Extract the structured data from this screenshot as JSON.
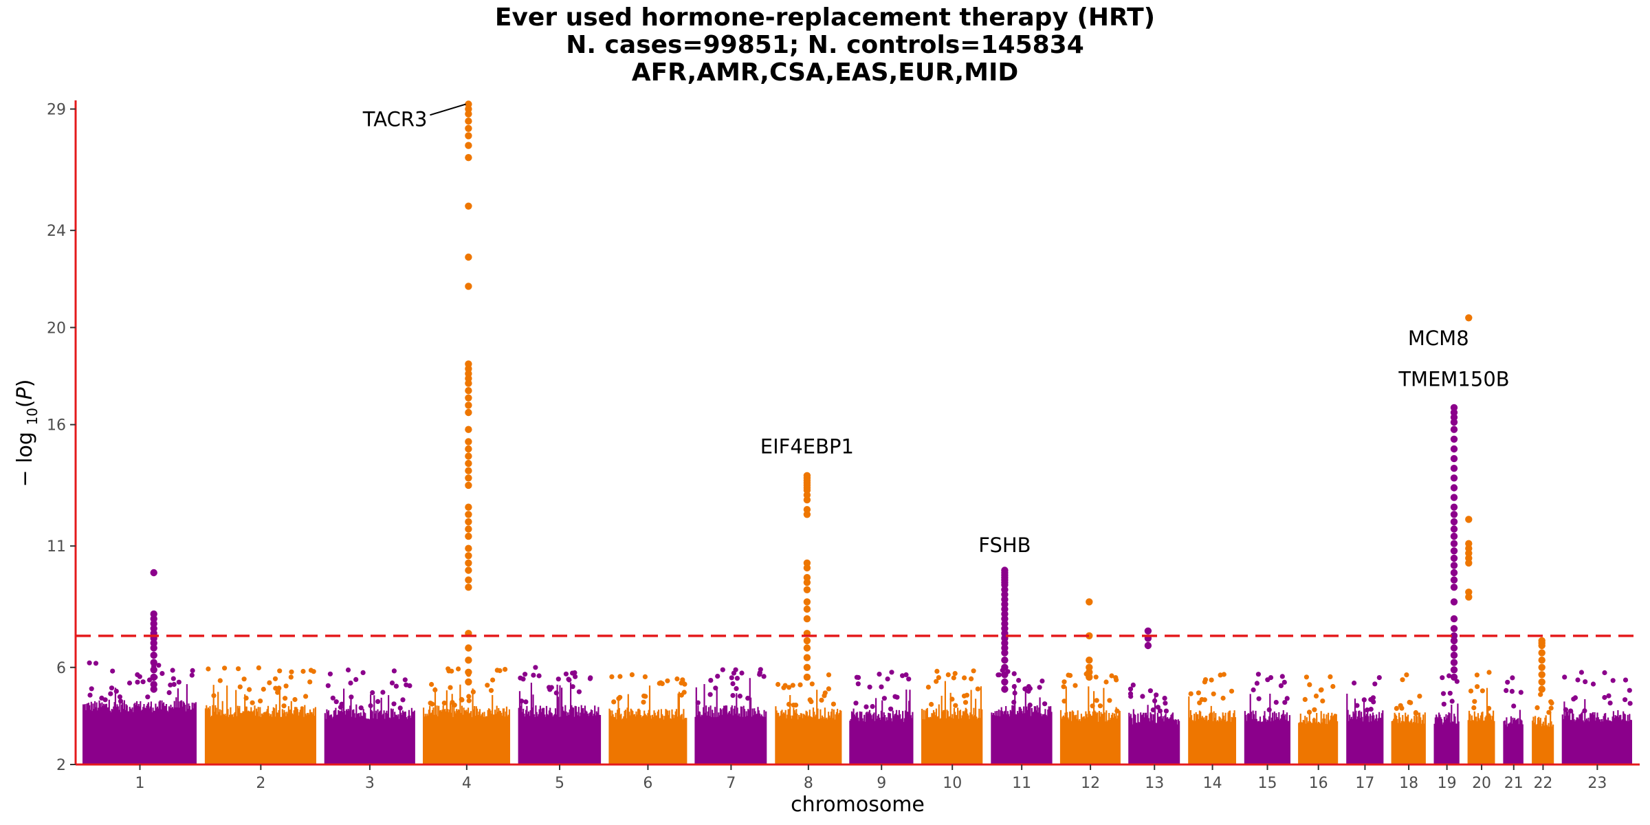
{
  "title": {
    "line1": "Ever used hormone-replacement therapy (HRT)",
    "line2": "N. cases=99851; N. controls=145834",
    "line3": "AFR,AMR,CSA,EAS,EUR,MID"
  },
  "colors": {
    "odd": "#8b008b",
    "even": "#ee7600",
    "axis": "#e41a1c",
    "threshold": "#e41a1c"
  },
  "chart_data": {
    "type": "scatter",
    "subtype": "manhattan",
    "xlabel": "chromosome",
    "ylabel_parts": [
      "− log",
      "10",
      "(",
      "P",
      ")"
    ],
    "ylim": [
      2,
      29.3
    ],
    "ytick_values": [
      2,
      6,
      11,
      16,
      20,
      24,
      29
    ],
    "ytick_labels": [
      "2",
      "6",
      "11",
      "16",
      "20",
      "24",
      "29"
    ],
    "significance_threshold": 7.3,
    "chromosomes": [
      {
        "label": "1",
        "size": 249,
        "baseline": 4.4
      },
      {
        "label": "2",
        "size": 243,
        "baseline": 4.2
      },
      {
        "label": "3",
        "size": 198,
        "baseline": 4.1
      },
      {
        "label": "4",
        "size": 191,
        "baseline": 4.2
      },
      {
        "label": "5",
        "size": 181,
        "baseline": 4.2
      },
      {
        "label": "6",
        "size": 171,
        "baseline": 4.1
      },
      {
        "label": "7",
        "size": 159,
        "baseline": 4.2
      },
      {
        "label": "8",
        "size": 146,
        "baseline": 4.1
      },
      {
        "label": "9",
        "size": 141,
        "baseline": 4.0
      },
      {
        "label": "10",
        "size": 136,
        "baseline": 4.1
      },
      {
        "label": "11",
        "size": 135,
        "baseline": 4.2
      },
      {
        "label": "12",
        "size": 133,
        "baseline": 4.0
      },
      {
        "label": "13",
        "size": 115,
        "baseline": 3.9
      },
      {
        "label": "14",
        "size": 107,
        "baseline": 4.0
      },
      {
        "label": "15",
        "size": 102,
        "baseline": 4.0
      },
      {
        "label": "16",
        "size": 90,
        "baseline": 3.9
      },
      {
        "label": "17",
        "size": 83,
        "baseline": 4.0
      },
      {
        "label": "18",
        "size": 78,
        "baseline": 3.9
      },
      {
        "label": "19",
        "size": 59,
        "baseline": 3.9
      },
      {
        "label": "20",
        "size": 63,
        "baseline": 4.0
      },
      {
        "label": "21",
        "size": 48,
        "baseline": 3.8
      },
      {
        "label": "22",
        "size": 51,
        "baseline": 3.8
      },
      {
        "label": "23",
        "size": 155,
        "baseline": 4.0
      }
    ],
    "peaks": [
      {
        "chrom": "1",
        "pos": 0.62,
        "values": [
          9.9,
          8.2,
          8.0,
          7.8,
          7.6,
          7.4,
          7.2,
          7.0,
          6.8,
          6.5,
          6.2,
          5.9,
          5.6,
          5.3,
          5.1
        ]
      },
      {
        "chrom": "4",
        "pos": 0.52,
        "values": [
          29.2,
          29.0,
          28.8,
          28.5,
          28.2,
          27.9,
          27.5,
          27.0,
          25.0,
          22.9,
          21.7,
          18.5,
          18.3,
          18.1,
          17.9,
          17.7,
          17.4,
          17.1,
          16.8,
          16.5,
          15.8,
          15.3,
          15.0,
          14.7,
          14.4,
          14.1,
          13.8,
          13.5,
          12.6,
          12.3,
          12.0,
          11.7,
          11.4,
          10.9,
          10.6,
          10.3,
          10.0,
          9.6,
          9.3,
          7.4,
          6.8,
          6.3,
          5.8,
          5.4
        ]
      },
      {
        "chrom": "8",
        "pos": 0.48,
        "values": [
          13.9,
          13.8,
          13.7,
          13.6,
          13.5,
          13.4,
          13.3,
          13.1,
          12.9,
          12.5,
          12.3,
          10.3,
          10.1,
          9.7,
          9.5,
          9.2,
          8.7,
          8.4,
          8.0,
          7.4,
          7.1,
          6.8,
          6.4,
          6.0,
          5.6
        ]
      },
      {
        "chrom": "11",
        "pos": 0.23,
        "values": [
          10.0,
          9.9,
          9.8,
          9.7,
          9.6,
          9.5,
          9.4,
          9.2,
          9.0,
          8.8,
          8.6,
          8.4,
          8.2,
          8.0,
          7.8,
          7.6,
          7.4,
          7.2,
          7.0,
          6.8,
          6.6,
          6.3,
          6.0,
          5.7,
          5.4,
          5.1
        ]
      },
      {
        "chrom": "12",
        "pos": 0.48,
        "values": [
          8.7,
          7.3,
          6.3,
          6.0,
          5.8,
          5.6
        ]
      },
      {
        "chrom": "13",
        "pos": 0.38,
        "values": [
          7.5,
          7.2,
          6.9
        ]
      },
      {
        "chrom": "19",
        "pos": 0.76,
        "values": [
          16.7,
          16.5,
          16.3,
          16.1,
          15.8,
          15.4,
          15.0,
          14.6,
          14.2,
          13.8,
          13.4,
          13.0,
          12.6,
          12.3,
          12.0,
          11.7,
          11.4,
          11.1,
          10.8,
          10.5,
          10.2,
          9.9,
          9.6,
          9.3,
          8.7,
          8.0,
          7.6,
          7.3,
          7.1,
          6.8,
          6.5,
          6.2,
          5.9,
          5.6
        ]
      },
      {
        "chrom": "20",
        "pos": 0.06,
        "values": [
          20.4,
          12.1,
          11.1,
          10.9,
          10.7,
          10.5,
          10.3,
          9.1,
          8.9
        ]
      },
      {
        "chrom": "22",
        "pos": 0.45,
        "values": [
          7.1,
          7.0,
          6.9,
          6.6,
          6.3,
          6.0,
          5.7,
          5.4,
          5.1
        ]
      }
    ],
    "annotations": [
      {
        "text": "TACR3",
        "chrom": "4",
        "value": 28.3
      },
      {
        "text": "EIF4EBP1",
        "chrom": "8",
        "value": 14.3
      },
      {
        "text": "FSHB",
        "chrom": "11",
        "value": 10.3
      },
      {
        "text": "MCM8",
        "chrom": "20",
        "value": 19.9
      },
      {
        "text": "TMEM150B",
        "chrom": "19",
        "value": 17.3
      }
    ],
    "grid": false
  }
}
